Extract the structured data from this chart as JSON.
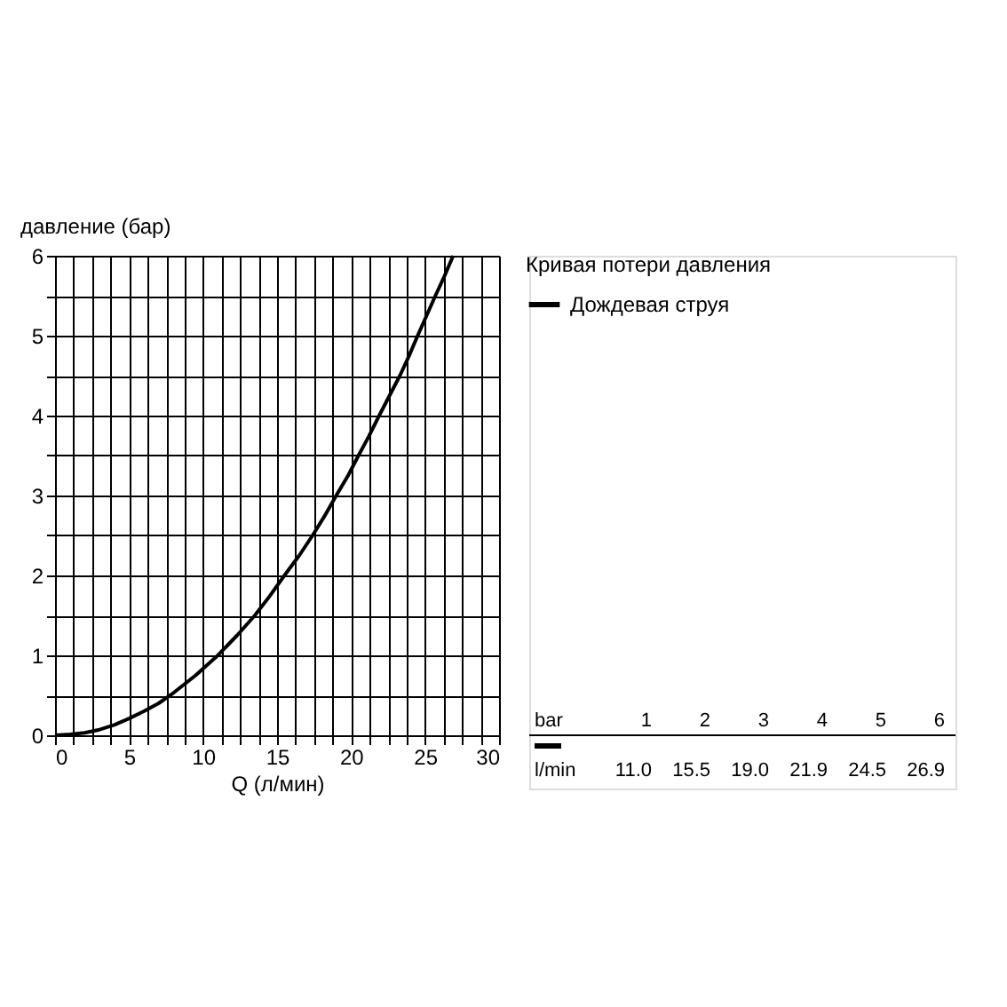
{
  "chart_data": {
    "type": "line",
    "xlabel": "Q (л/мин)",
    "ylabel": "давление (бар)",
    "legend_title": "Кривая потери давления",
    "series": [
      {
        "name": "Дождевая струя",
        "color": "#000000",
        "x": [
          0,
          1,
          2,
          3,
          4,
          5,
          6,
          7,
          8,
          9.5,
          11,
          12.3,
          13.5,
          14.5,
          15.5,
          16.5,
          17.4,
          18.2,
          19,
          19.8,
          20.5,
          21.2,
          21.9,
          22.6,
          23.3,
          23.9,
          24.5,
          25.1,
          25.7,
          26.3,
          26.9
        ],
        "values": [
          0,
          0.01,
          0.03,
          0.07,
          0.13,
          0.21,
          0.3,
          0.4,
          0.53,
          0.75,
          1,
          1.25,
          1.5,
          1.74,
          2,
          2.25,
          2.5,
          2.74,
          3,
          3.25,
          3.5,
          3.74,
          4,
          4.25,
          4.5,
          4.74,
          5,
          5.25,
          5.5,
          5.74,
          6
        ]
      }
    ],
    "xlim": [
      0,
      30
    ],
    "ylim": [
      0,
      6
    ],
    "xticks": [
      0,
      {
        "value": 1.25,
        "label": null
      },
      {
        "value": 2.5,
        "label": null
      },
      {
        "value": 3.75,
        "label": null
      },
      5,
      {
        "value": 6.25,
        "label": null
      },
      {
        "value": 7.5,
        "label": null
      },
      {
        "value": 8.75,
        "label": null
      },
      10,
      {
        "value": 11.25,
        "label": null
      },
      {
        "value": 12.5,
        "label": null
      },
      {
        "value": 13.75,
        "label": null
      },
      15,
      {
        "value": 16.25,
        "label": null
      },
      {
        "value": 17.5,
        "label": null
      },
      {
        "value": 18.75,
        "label": null
      },
      20,
      {
        "value": 21.25,
        "label": null
      },
      {
        "value": 22.5,
        "label": null
      },
      {
        "value": 23.75,
        "label": null
      },
      25,
      {
        "value": 26.25,
        "label": null
      },
      {
        "value": 27.5,
        "label": null
      },
      {
        "value": 28.75,
        "label": null
      },
      30
    ],
    "yticks": [
      0,
      {
        "value": 0.5,
        "label": null
      },
      1,
      {
        "value": 1.5,
        "label": null
      },
      2,
      {
        "value": 2.5,
        "label": null
      },
      3,
      {
        "value": 3.5,
        "label": null
      },
      4,
      {
        "value": 4.5,
        "label": null
      },
      5,
      {
        "value": 5.5,
        "label": null
      },
      6
    ],
    "grid": true,
    "legend": "right",
    "marker": "none",
    "line_style": "solid",
    "annotations": [
      "bar",
      "1",
      "2",
      "3",
      "4",
      "5",
      "6",
      "l/min",
      "11.0",
      "15.5",
      "19.0",
      "21.9",
      "24.5",
      "26.9"
    ]
  }
}
